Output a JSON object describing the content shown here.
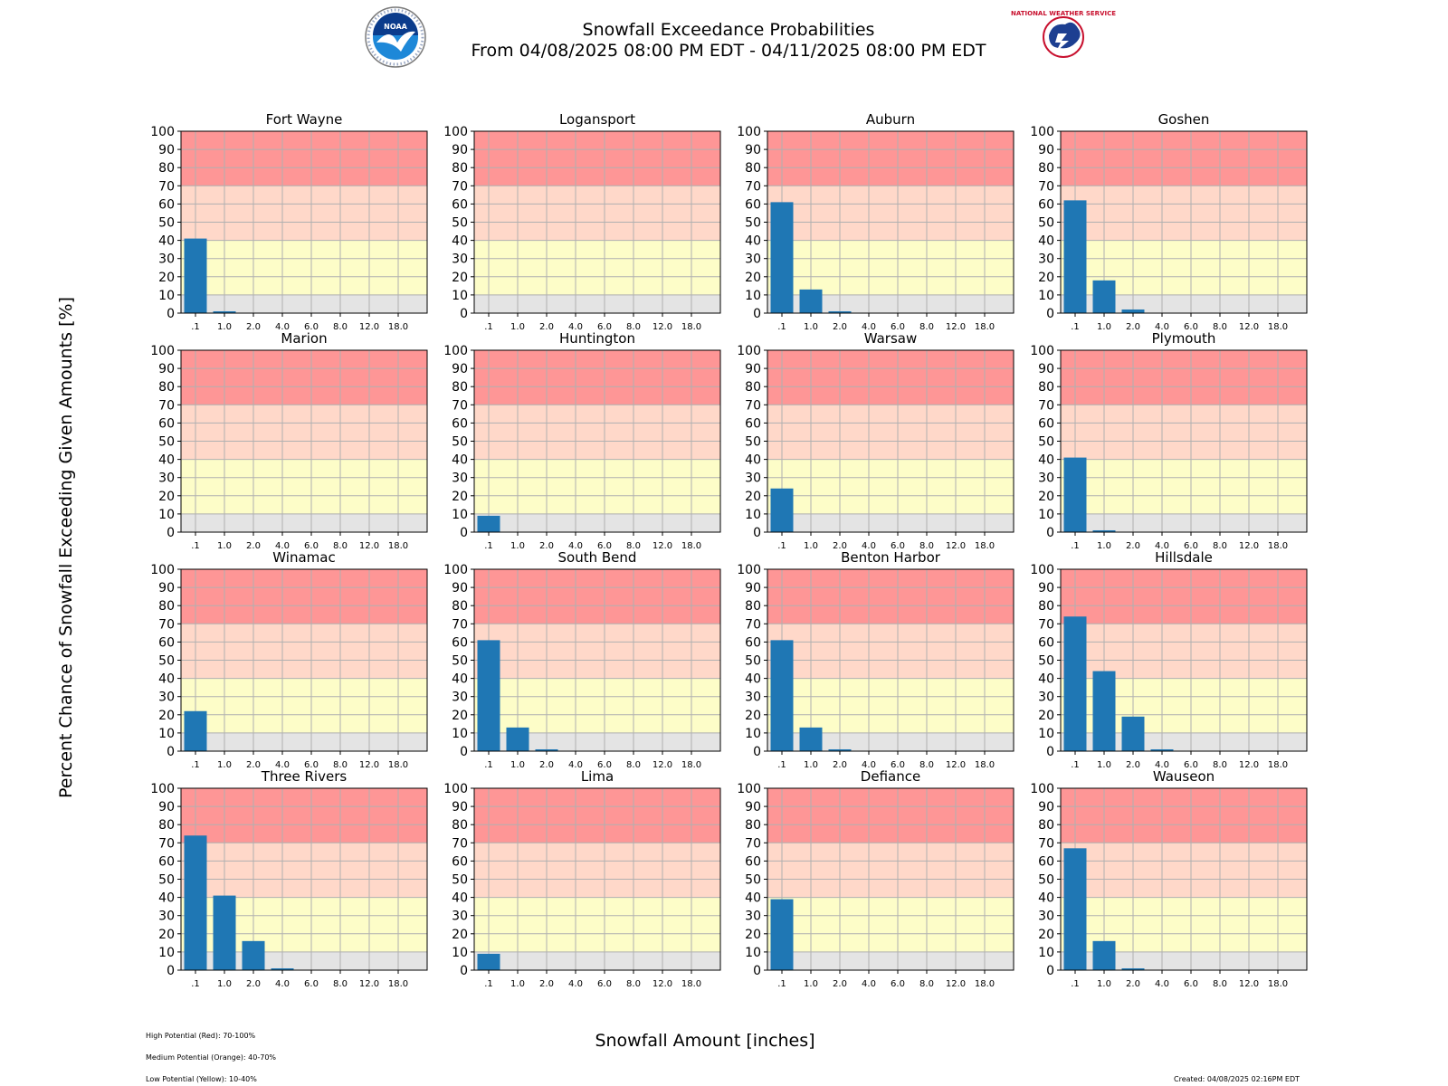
{
  "header": {
    "title": "Snowfall Exceedance Probabilities",
    "subtitle": "From 04/08/2025 08:00 PM EDT - 04/11/2025 08:00 PM EDT",
    "left_logo": "noaa-logo",
    "right_logo": "nws-logo",
    "right_logo_text": "NATIONAL WEATHER SERVICE"
  },
  "axes_labels": {
    "ylabel": "Percent Chance of Snowfall Exceeding Given Amounts [%]",
    "xlabel": "Snowfall Amount [inches]"
  },
  "footer": {
    "legend_high": "High Potential (Red): 70-100%",
    "legend_medium": "Medium Potential (Orange): 40-70%",
    "legend_low": "Low Potential (Yellow): 10-40%",
    "created": "Created: 04/08/2025 02:16PM EDT"
  },
  "colors": {
    "bar": "#1f77b4",
    "band_high": "#fe9696",
    "band_medium": "#ffd8c9",
    "band_low": "#fdfdc8",
    "band_none": "#e4e4e4",
    "grid": "#b0b0b0"
  },
  "chart_data": {
    "type": "bar",
    "categories": [
      ".1",
      "1.0",
      "2.0",
      "4.0",
      "6.0",
      "8.0",
      "12.0",
      "18.0"
    ],
    "ylim": [
      0,
      100
    ],
    "yticks": [
      "0",
      "10",
      "20",
      "30",
      "40",
      "50",
      "60",
      "70",
      "80",
      "90",
      "100"
    ],
    "grid": true,
    "bands": [
      {
        "from": 0,
        "to": 10,
        "color": "#e4e4e4"
      },
      {
        "from": 10,
        "to": 40,
        "color": "#fdfdc8"
      },
      {
        "from": 40,
        "to": 70,
        "color": "#ffd8c9"
      },
      {
        "from": 70,
        "to": 100,
        "color": "#fe9696"
      }
    ],
    "panels": [
      {
        "title": "Fort Wayne",
        "values": [
          41,
          1,
          0,
          0,
          0,
          0,
          0,
          0
        ]
      },
      {
        "title": "Logansport",
        "values": [
          0,
          0,
          0,
          0,
          0,
          0,
          0,
          0
        ]
      },
      {
        "title": "Auburn",
        "values": [
          61,
          13,
          1,
          0,
          0,
          0,
          0,
          0
        ]
      },
      {
        "title": "Goshen",
        "values": [
          62,
          18,
          2,
          0,
          0,
          0,
          0,
          0
        ]
      },
      {
        "title": "Marion",
        "values": [
          0,
          0,
          0,
          0,
          0,
          0,
          0,
          0
        ]
      },
      {
        "title": "Huntington",
        "values": [
          9,
          0,
          0,
          0,
          0,
          0,
          0,
          0
        ]
      },
      {
        "title": "Warsaw",
        "values": [
          24,
          0,
          0,
          0,
          0,
          0,
          0,
          0
        ]
      },
      {
        "title": "Plymouth",
        "values": [
          41,
          1,
          0,
          0,
          0,
          0,
          0,
          0
        ]
      },
      {
        "title": "Winamac",
        "values": [
          22,
          0,
          0,
          0,
          0,
          0,
          0,
          0
        ]
      },
      {
        "title": "South Bend",
        "values": [
          61,
          13,
          1,
          0,
          0,
          0,
          0,
          0
        ]
      },
      {
        "title": "Benton Harbor",
        "values": [
          61,
          13,
          1,
          0,
          0,
          0,
          0,
          0
        ]
      },
      {
        "title": "Hillsdale",
        "values": [
          74,
          44,
          19,
          1,
          0,
          0,
          0,
          0
        ]
      },
      {
        "title": "Three Rivers",
        "values": [
          74,
          41,
          16,
          1,
          0,
          0,
          0,
          0
        ]
      },
      {
        "title": "Lima",
        "values": [
          9,
          0,
          0,
          0,
          0,
          0,
          0,
          0
        ]
      },
      {
        "title": "Defiance",
        "values": [
          39,
          0,
          0,
          0,
          0,
          0,
          0,
          0
        ]
      },
      {
        "title": "Wauseon",
        "values": [
          67,
          16,
          1,
          0,
          0,
          0,
          0,
          0
        ]
      }
    ]
  }
}
